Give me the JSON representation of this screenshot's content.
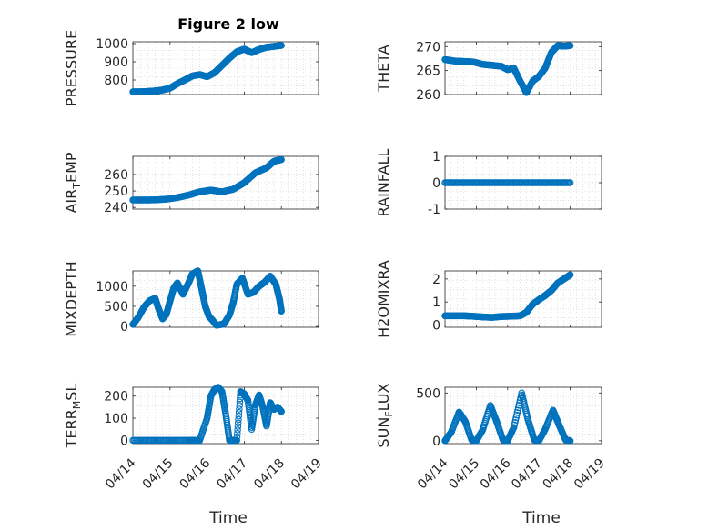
{
  "figure": {
    "title": "Figure 2 low"
  },
  "x_axis": {
    "label": "Time",
    "tick_labels": [
      "04/14",
      "04/15",
      "04/16",
      "04/17",
      "04/18",
      "04/19"
    ]
  },
  "style": {
    "marker_color": "#0072BD",
    "grid": true
  },
  "chart_data": [
    {
      "type": "scatter",
      "name": "PRESSURE",
      "ylabel": "PRESSURE",
      "ylim": [
        720,
        1010
      ],
      "yticks": [
        800,
        900,
        1000
      ],
      "xlim": [
        0,
        5
      ],
      "x": [
        0,
        0.2,
        0.4,
        0.6,
        0.8,
        1.0,
        1.2,
        1.4,
        1.6,
        1.8,
        2.0,
        2.2,
        2.4,
        2.6,
        2.8,
        3.0,
        3.2,
        3.4,
        3.6,
        3.8,
        4.0
      ],
      "y": [
        735,
        735,
        737,
        740,
        745,
        755,
        780,
        800,
        822,
        830,
        818,
        840,
        880,
        920,
        955,
        970,
        950,
        968,
        980,
        985,
        990
      ]
    },
    {
      "type": "scatter",
      "name": "THETA",
      "ylabel": "THETA",
      "ylim": [
        260,
        271
      ],
      "yticks": [
        260,
        265,
        270
      ],
      "xlim": [
        0,
        5
      ],
      "x": [
        0,
        0.3,
        0.6,
        0.9,
        1.2,
        1.5,
        1.8,
        2.0,
        2.2,
        2.4,
        2.6,
        2.8,
        3.0,
        3.2,
        3.4,
        3.6,
        3.8,
        4.0
      ],
      "y": [
        267.3,
        267.0,
        266.9,
        266.8,
        266.3,
        266.1,
        265.9,
        265.2,
        265.5,
        262.8,
        260.4,
        262.8,
        263.8,
        265.5,
        268.8,
        270.2,
        270.1,
        270.2
      ]
    },
    {
      "type": "scatter",
      "name": "AIR_TEMP",
      "ylabel": "AIR",
      "ylabel_sub": "T",
      "ylabel_rest": "EMP",
      "ylim": [
        239,
        271
      ],
      "yticks": [
        240,
        250,
        260
      ],
      "xlim": [
        0,
        5
      ],
      "x": [
        0,
        0.3,
        0.6,
        0.9,
        1.2,
        1.5,
        1.8,
        2.1,
        2.4,
        2.7,
        3.0,
        3.3,
        3.6,
        3.8,
        4.0
      ],
      "y": [
        244.5,
        244.5,
        244.6,
        245,
        246,
        247.5,
        249.5,
        250.5,
        249.5,
        251,
        255,
        261,
        264,
        268,
        269
      ]
    },
    {
      "type": "scatter",
      "name": "RAINFALL",
      "ylabel": "RAINFALL",
      "ylim": [
        -1,
        1
      ],
      "yticks": [
        -1,
        0,
        1
      ],
      "xlim": [
        0,
        5
      ],
      "x": [
        0,
        0.5,
        1.0,
        1.5,
        2.0,
        2.5,
        3.0,
        3.5,
        4.0
      ],
      "y": [
        0,
        0,
        0,
        0,
        0,
        0,
        0,
        0,
        0
      ]
    },
    {
      "type": "scatter",
      "name": "MIXDEPTH",
      "ylabel": "MIXDEPTH",
      "ylim": [
        -20,
        1380
      ],
      "yticks": [
        0,
        500,
        1000
      ],
      "xlim": [
        0,
        5
      ],
      "x": [
        0,
        0.15,
        0.3,
        0.45,
        0.6,
        0.7,
        0.8,
        0.9,
        1.0,
        1.1,
        1.2,
        1.35,
        1.5,
        1.6,
        1.75,
        1.85,
        1.95,
        2.05,
        2.15,
        2.25,
        2.45,
        2.6,
        2.7,
        2.8,
        2.95,
        3.1,
        3.25,
        3.4,
        3.55,
        3.7,
        3.85,
        3.95,
        4.0
      ],
      "y": [
        50,
        230,
        480,
        640,
        700,
        420,
        190,
        300,
        630,
        950,
        1080,
        800,
        1080,
        1300,
        1380,
        950,
        500,
        250,
        150,
        30,
        60,
        280,
        580,
        1050,
        1200,
        800,
        850,
        1000,
        1100,
        1250,
        1050,
        680,
        380
      ]
    },
    {
      "type": "scatter",
      "name": "H2OMIXRA",
      "ylabel": "H2OMIXRA",
      "ylim": [
        -0.1,
        2.35
      ],
      "yticks": [
        0,
        1,
        2
      ],
      "xlim": [
        0,
        5
      ],
      "x": [
        0,
        0.3,
        0.6,
        0.9,
        1.2,
        1.5,
        1.8,
        2.1,
        2.4,
        2.6,
        2.8,
        3.0,
        3.2,
        3.4,
        3.6,
        3.8,
        4.0
      ],
      "y": [
        0.4,
        0.4,
        0.4,
        0.38,
        0.35,
        0.33,
        0.37,
        0.38,
        0.4,
        0.55,
        0.9,
        1.1,
        1.28,
        1.5,
        1.82,
        2.0,
        2.18
      ]
    },
    {
      "type": "scatter",
      "name": "TERR_MSL",
      "ylabel": "TERR",
      "ylabel_sub": "M",
      "ylabel_rest": "SL",
      "ylim": [
        -15,
        240
      ],
      "yticks": [
        0,
        100,
        200
      ],
      "xlim": [
        0,
        5
      ],
      "x": [
        0,
        0.5,
        1.0,
        1.5,
        1.8,
        2.0,
        2.1,
        2.2,
        2.3,
        2.4,
        2.5,
        2.6,
        2.7,
        2.8,
        2.9,
        3.0,
        3.1,
        3.2,
        3.3,
        3.4,
        3.5,
        3.6,
        3.7,
        3.8,
        3.9,
        4.0
      ],
      "y": [
        0,
        0,
        0,
        0,
        0,
        100,
        200,
        230,
        240,
        220,
        120,
        0,
        0,
        0,
        220,
        210,
        180,
        50,
        160,
        205,
        150,
        65,
        170,
        140,
        150,
        130
      ]
    },
    {
      "type": "scatter",
      "name": "SUN_FLUX",
      "ylabel": "SUN",
      "ylabel_sub": "F",
      "ylabel_rest": "LUX",
      "ylim": [
        -30,
        560
      ],
      "yticks": [
        0,
        500
      ],
      "xlim": [
        0,
        5
      ],
      "x": [
        0,
        0.2,
        0.45,
        0.65,
        0.85,
        1.0,
        1.2,
        1.45,
        1.65,
        1.85,
        2.0,
        2.2,
        2.45,
        2.65,
        2.85,
        3.0,
        3.2,
        3.45,
        3.65,
        3.85,
        4.0
      ],
      "y": [
        0,
        90,
        300,
        200,
        10,
        0,
        110,
        370,
        200,
        10,
        0,
        140,
        500,
        220,
        10,
        0,
        120,
        320,
        160,
        10,
        0
      ]
    }
  ]
}
